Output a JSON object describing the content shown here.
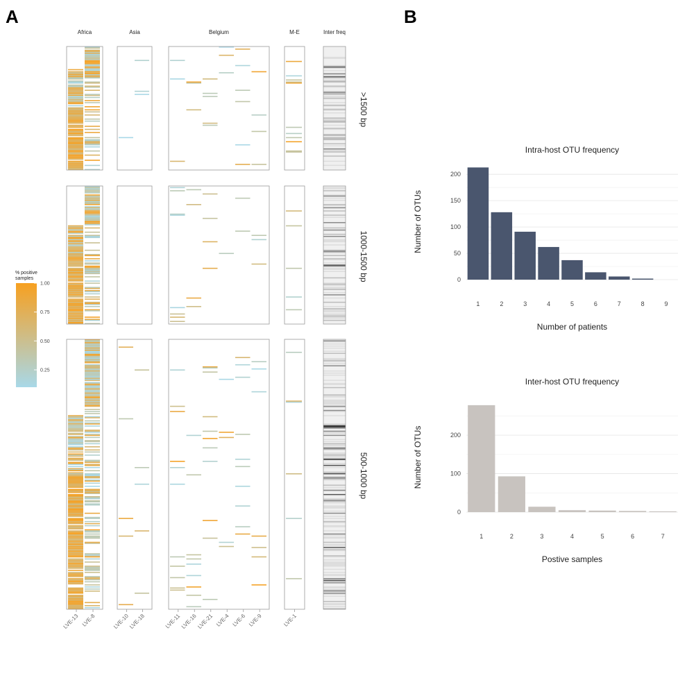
{
  "panel_labels": {
    "a": "A",
    "b": "B"
  },
  "legend": {
    "title_line1": "% positive",
    "title_line2": "samples",
    "ticks": [
      "1.00",
      "0.75",
      "0.50",
      "0.25"
    ],
    "tick_values": [
      1.0,
      0.75,
      0.5,
      0.25
    ],
    "range": [
      0.1,
      1.0
    ],
    "color_low": "#a8d8e8",
    "color_high": "#f7a020"
  },
  "chart_data": [
    {
      "type": "heatmap",
      "title": "",
      "groups": [
        {
          "name": "Africa",
          "samples": [
            "LVE-13",
            "LVE-8"
          ]
        },
        {
          "name": "Asia",
          "samples": [
            "LVE-10",
            "LVE-18"
          ]
        },
        {
          "name": "Belgium",
          "samples": [
            "LVE-11",
            "LVE-16",
            "LVE-21",
            "LVE-4",
            "LVE-6",
            "LVE-9"
          ]
        },
        {
          "name": "M-E",
          "samples": [
            "LVE-1"
          ]
        },
        {
          "name": "Inter freq",
          "samples": []
        }
      ],
      "rows": [
        ">1500 bp",
        "1000-1500 bp",
        "500-1000 bp"
      ],
      "row_otu_counts": [
        120,
        130,
        260
      ],
      "inter_freq_colors": [
        "#f0f0f0",
        "#dddddd",
        "#bdbdbd",
        "#8a8a8a",
        "#555555",
        "#222222"
      ],
      "seed": 20241
    },
    {
      "type": "bar",
      "title": "Intra-host OTU frequency",
      "xlabel": "Number of patients",
      "ylabel": "Number of OTUs",
      "categories": [
        "1",
        "2",
        "3",
        "4",
        "5",
        "6",
        "7",
        "8",
        "9"
      ],
      "values": [
        213,
        128,
        91,
        62,
        37,
        14,
        6,
        2,
        0
      ],
      "yticks": [
        0,
        50,
        100,
        150,
        200
      ],
      "ylim": [
        0,
        220
      ],
      "color": "#4a566e"
    },
    {
      "type": "bar",
      "title": "Inter-host OTU frequency",
      "xlabel": "Postive samples",
      "ylabel": "Number of OTUs",
      "categories": [
        "1",
        "2",
        "3",
        "4",
        "5",
        "6",
        "7"
      ],
      "values": [
        278,
        93,
        14,
        5,
        4,
        3,
        2
      ],
      "yticks": [
        0,
        100,
        200
      ],
      "ylim": [
        0,
        285
      ],
      "color": "#c8c3bf"
    }
  ]
}
